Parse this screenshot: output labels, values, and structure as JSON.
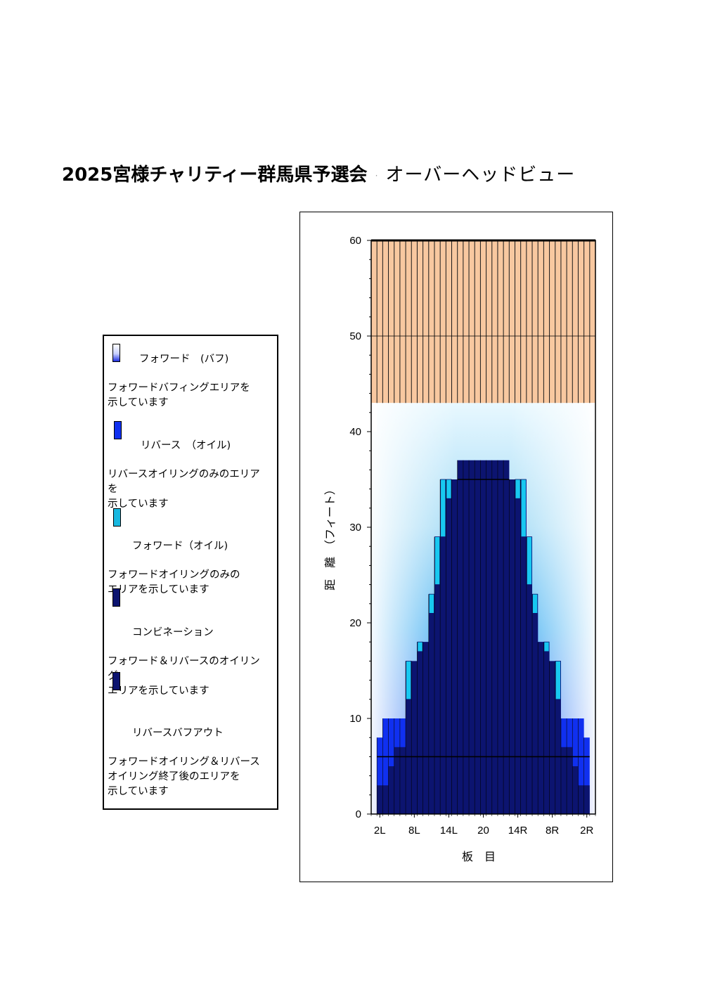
{
  "title": {
    "event": "2025宮様チャリティー群馬県予選会",
    "separator": "·",
    "view": "オーバーヘッドビュー"
  },
  "legend": [
    {
      "key": "forward_buff",
      "color": "#3a55e0",
      "title": "フォワード　(バフ)",
      "description": "フォワードバフィングエリアを\n示しています"
    },
    {
      "key": "reverse_oil",
      "color": "#1030f0",
      "title": "リバース　（オイル)",
      "description": "リバースオイリングのみのエリア\nを\n示しています"
    },
    {
      "key": "forward_oil",
      "color": "#18b8e0",
      "title": "フォワード（オイル)",
      "description": "フォワードオイリングのみの\nエリアを示しています"
    },
    {
      "key": "combination",
      "color": "#0c1470",
      "title": "コンビネーション",
      "description": "フォワード＆リバースのオイリン\nグ\nエリアを示しています"
    },
    {
      "key": "reverse_buff_out",
      "color": "#0c1470",
      "title": "リバースバフアウト",
      "description": "フォワードオイリング＆リバース\nオイリング終了後のエリアを\n示しています"
    }
  ],
  "chart_data": {
    "type": "heatmap",
    "xlabel": "板　目",
    "ylabel": "距　離　（フィート）",
    "x_tick_labels": [
      "2L",
      "8L",
      "14L",
      "20",
      "14R",
      "8R",
      "2R"
    ],
    "board_count": 39,
    "ylim": [
      0,
      60
    ],
    "y_ticks": [
      0,
      10,
      20,
      30,
      40,
      50,
      60
    ],
    "grid": "horizontal",
    "colors": {
      "lane_background": "#f8c8a0",
      "board_line": "#1a1a1a",
      "navy": "#0c1470",
      "reverse_oil": "#1030f0",
      "forward_oil": "#18c8f0",
      "buff_light": "#e8f8ff"
    },
    "oil_region_end_ft": 43,
    "lane_visible_from_ft": 40,
    "reverse_buff_out_ft": 6,
    "combination_ft_by_board": [
      0,
      3,
      3,
      5,
      7,
      7,
      12,
      16,
      17,
      18,
      21,
      24,
      29,
      33,
      35,
      37,
      37,
      37,
      37,
      37,
      37,
      37,
      37,
      37,
      35,
      33,
      29,
      24,
      21,
      18,
      17,
      16,
      12,
      7,
      7,
      5,
      3,
      3,
      0
    ],
    "forward_oil_ft_by_board": [
      0,
      8,
      10,
      10,
      10,
      10,
      16,
      16,
      18,
      18,
      23,
      29,
      35,
      35,
      35,
      37,
      37,
      37,
      37,
      37,
      37,
      37,
      37,
      37,
      35,
      35,
      35,
      29,
      23,
      18,
      18,
      16,
      16,
      10,
      10,
      10,
      10,
      8,
      0
    ]
  }
}
